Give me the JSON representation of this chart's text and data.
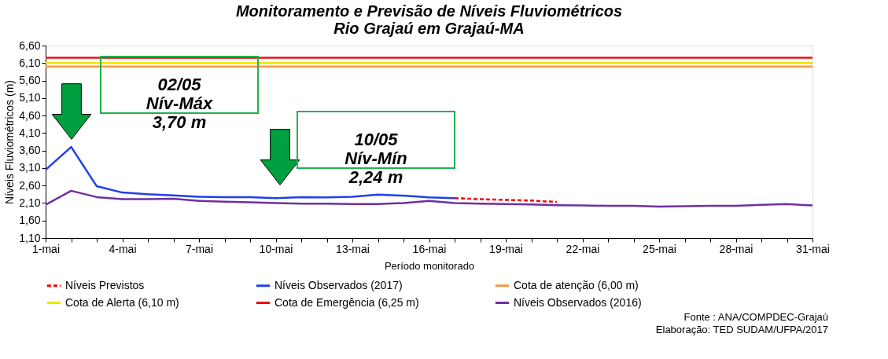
{
  "chart_data": {
    "type": "line",
    "title": "Monitoramento e Previsão de Níveis Fluviométricos\nRio Grajaú em Grajaú-MA",
    "xlabel": "Período monitorado",
    "ylabel": "Níveis Fluviométricos (m)",
    "categories": [
      "1-mai",
      null,
      null,
      "4-mai",
      null,
      null,
      "7-mai",
      null,
      null,
      "10-mai",
      null,
      null,
      "13-mai",
      null,
      null,
      "16-mai",
      null,
      null,
      "19-mai",
      null,
      null,
      "22-mai",
      null,
      null,
      "25-mai",
      null,
      null,
      "28-mai",
      null,
      null,
      "31-mai"
    ],
    "series": [
      {
        "name": "Níveis Previstos",
        "color": "#ff0000",
        "line_style": "dashed",
        "values": [
          null,
          null,
          null,
          null,
          null,
          null,
          null,
          null,
          null,
          null,
          null,
          null,
          null,
          null,
          null,
          null,
          2.24,
          2.21,
          2.19,
          2.17,
          2.13,
          null,
          null,
          null,
          null,
          null,
          null,
          null,
          null,
          null,
          null
        ]
      },
      {
        "name": "Níveis Observados (2017)",
        "color": "#1f3ff0",
        "values": [
          3.05,
          3.7,
          2.58,
          2.4,
          2.35,
          2.32,
          2.28,
          2.27,
          2.27,
          2.24,
          2.27,
          2.26,
          2.28,
          2.34,
          2.31,
          2.26,
          2.24,
          null,
          null,
          null,
          null,
          null,
          null,
          null,
          null,
          null,
          null,
          null,
          null,
          null,
          null
        ]
      },
      {
        "name": "Cota de atenção (6,00 m)",
        "color": "#f79646",
        "values": [
          6.0,
          6.0,
          6.0,
          6.0,
          6.0,
          6.0,
          6.0,
          6.0,
          6.0,
          6.0,
          6.0,
          6.0,
          6.0,
          6.0,
          6.0,
          6.0,
          6.0,
          6.0,
          6.0,
          6.0,
          6.0,
          6.0,
          6.0,
          6.0,
          6.0,
          6.0,
          6.0,
          6.0,
          6.0,
          6.0,
          6.0
        ]
      },
      {
        "name": "Cota de Alerta (6,10 m)",
        "color": "#f2e600",
        "values": [
          6.1,
          6.1,
          6.1,
          6.1,
          6.1,
          6.1,
          6.1,
          6.1,
          6.1,
          6.1,
          6.1,
          6.1,
          6.1,
          6.1,
          6.1,
          6.1,
          6.1,
          6.1,
          6.1,
          6.1,
          6.1,
          6.1,
          6.1,
          6.1,
          6.1,
          6.1,
          6.1,
          6.1,
          6.1,
          6.1,
          6.1
        ]
      },
      {
        "name": "Cota de Emergência (6,25 m)",
        "color": "#e81010",
        "values": [
          6.25,
          6.25,
          6.25,
          6.25,
          6.25,
          6.25,
          6.25,
          6.25,
          6.25,
          6.25,
          6.25,
          6.25,
          6.25,
          6.25,
          6.25,
          6.25,
          6.25,
          6.25,
          6.25,
          6.25,
          6.25,
          6.25,
          6.25,
          6.25,
          6.25,
          6.25,
          6.25,
          6.25,
          6.25,
          6.25,
          6.25
        ]
      },
      {
        "name": "Níveis Observados (2016)",
        "color": "#7030a0",
        "values": [
          2.05,
          2.45,
          2.27,
          2.21,
          2.21,
          2.22,
          2.16,
          2.14,
          2.12,
          2.1,
          2.08,
          2.08,
          2.07,
          2.07,
          2.1,
          2.16,
          2.1,
          2.08,
          2.07,
          2.06,
          2.04,
          2.03,
          2.02,
          2.02,
          2.0,
          2.01,
          2.02,
          2.02,
          2.05,
          2.07,
          2.03
        ]
      }
    ],
    "ylim": [
      1.1,
      6.6
    ],
    "yticks": [
      {
        "value": 1.1,
        "label": "1,10"
      },
      {
        "value": 1.6,
        "label": "1,60"
      },
      {
        "value": 2.1,
        "label": "2,10"
      },
      {
        "value": 2.6,
        "label": "2,60"
      },
      {
        "value": 3.1,
        "label": "3,10"
      },
      {
        "value": 3.6,
        "label": "3,60"
      },
      {
        "value": 4.1,
        "label": "4,10"
      },
      {
        "value": 4.6,
        "label": "4,60"
      },
      {
        "value": 5.1,
        "label": "5,10"
      },
      {
        "value": 5.6,
        "label": "5,60"
      },
      {
        "value": 6.1,
        "label": "6,10"
      },
      {
        "value": 6.6,
        "label": "6,60"
      }
    ],
    "grid": false,
    "legend": "bottom",
    "marker": "none",
    "annotations": [
      "02/05\nNív-Máx\n3,70 m",
      "10/05\nNív-Mín\n2,24 m",
      "Fonte : ANA/COMPDEC-Grajaú",
      "Elaboração: TED SUDAM/UFPA/2017"
    ]
  }
}
